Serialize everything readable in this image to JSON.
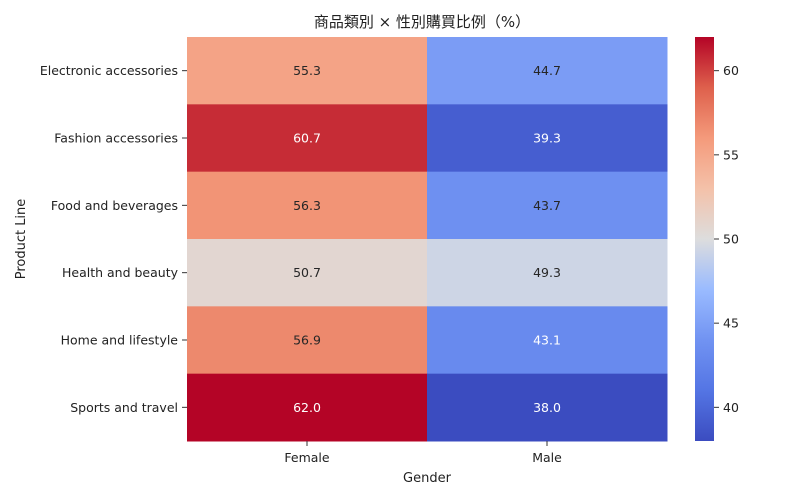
{
  "chart_data": {
    "type": "heatmap",
    "title": "商品類別 × 性別購買比例（%）",
    "xlabel": "Gender",
    "ylabel": "Product Line",
    "x_categories": [
      "Female",
      "Male"
    ],
    "y_categories": [
      "Electronic accessories",
      "Fashion accessories",
      "Food and beverages",
      "Health and beauty",
      "Home and lifestyle",
      "Sports and travel"
    ],
    "values": [
      [
        55.3,
        44.7
      ],
      [
        60.7,
        39.3
      ],
      [
        56.3,
        43.7
      ],
      [
        50.7,
        49.3
      ],
      [
        56.9,
        43.1
      ],
      [
        62.0,
        38.0
      ]
    ],
    "colormap": "coolwarm",
    "colorbar": {
      "min": 38.0,
      "max": 62.0,
      "ticks": [
        40,
        45,
        50,
        55,
        60
      ]
    },
    "annotate": true,
    "grid": false
  }
}
